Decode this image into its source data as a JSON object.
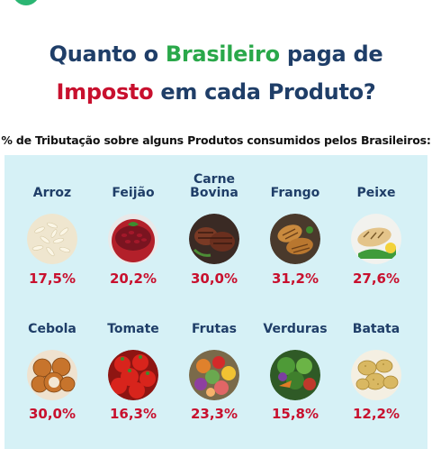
{
  "header": {
    "line1_a": "Quanto o ",
    "line1_b": "Brasileiro",
    "line1_c": " paga de",
    "line2_a": "Imposto",
    "line2_b": " em cada Produto?"
  },
  "subtitle": "% de Tributação sobre alguns Produtos consumidos pelos Brasileiros:",
  "colors": {
    "accent_green": "#2aa84a",
    "accent_red": "#c8102e",
    "navy": "#1f3e68",
    "panel": "#d6f1f6"
  },
  "products": [
    {
      "name": "Arroz",
      "pct": "17,5%",
      "icon": "rice-icon"
    },
    {
      "name": "Feijão",
      "pct": "20,2%",
      "icon": "beans-icon"
    },
    {
      "name": "Carne\nBovina",
      "pct": "30,0%",
      "icon": "beef-icon"
    },
    {
      "name": "Frango",
      "pct": "31,2%",
      "icon": "chicken-icon"
    },
    {
      "name": "Peixe",
      "pct": "27,6%",
      "icon": "fish-icon"
    },
    {
      "name": "Cebola",
      "pct": "30,0%",
      "icon": "onion-icon"
    },
    {
      "name": "Tomate",
      "pct": "16,3%",
      "icon": "tomato-icon"
    },
    {
      "name": "Frutas",
      "pct": "23,3%",
      "icon": "fruits-icon"
    },
    {
      "name": "Verduras",
      "pct": "15,8%",
      "icon": "vegetables-icon"
    },
    {
      "name": "Batata",
      "pct": "12,2%",
      "icon": "potato-icon"
    }
  ]
}
